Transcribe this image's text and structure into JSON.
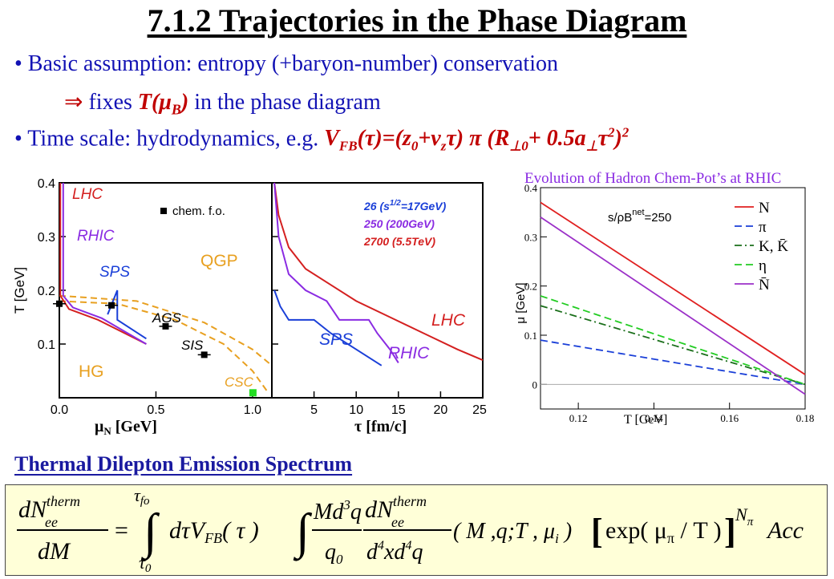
{
  "slide": {
    "title": "7.1.2 Trajectories in the Phase Diagram",
    "bullets": [
      {
        "text": "• Basic assumption:  entropy (+baryon-number) conservation"
      },
      {
        "arrow": "⇒",
        "text_a": " fixes ",
        "text_b": "T(μ",
        "sub": "B",
        "text_c": ")",
        "text_d": " in the phase diagram"
      },
      {
        "text_a": "• Time scale: hydrodynamics,   e.g. ",
        "formula": "V",
        "sub1": "FB",
        "f2": "(τ)=(z",
        "sub2": "0",
        "f3": "+v",
        "sub3": "z",
        "f4": "τ)  π (R",
        "sub4": "⊥0",
        "f5": "+ 0.5a",
        "sub5": "⊥",
        "f6": "τ",
        "sup6": "2",
        "f7": ")",
        "sup7": "2"
      }
    ],
    "subtitle": "Thermal Dilepton Emission Spectrum",
    "formula": {
      "lhs_num": "dN",
      "lhs_num_sup": "therm",
      "lhs_num_sub": "ee",
      "lhs_den": "dM",
      "eq": "=",
      "int_upper": "τ",
      "int_upper_sub": "fo",
      "int_lower": "τ",
      "int_lower_sub": "0",
      "int1_body": "dτV",
      "int1_sub": "FB",
      "int1_arg": "( τ )",
      "int2_num": "Md",
      "int2_num_sup": "3",
      "int2_num_q": "q",
      "int2_den": "q",
      "int2_den_sub": "0",
      "rate_num": "dN",
      "rate_num_sup": "therm",
      "rate_num_sub": "ee",
      "rate_den": "d",
      "rate_den_sup": "4",
      "rate_den_b": "xd",
      "rate_den_sup2": "4",
      "rate_den_c": "q",
      "args": "( M ,q;T , μ",
      "args_sub": "i",
      "args_end": " )",
      "exp_open": "[",
      "exp_text": "exp( μ",
      "exp_sub": "π",
      "exp_mid": " / T )",
      "exp_close": "]",
      "exp_pow": "N",
      "exp_pow_sub": "π",
      "acc": "Acc"
    }
  },
  "chart_data": [
    {
      "type": "line",
      "title": "",
      "xlabel": "μN [GeV]",
      "ylabel": "T [GeV]",
      "xlim": [
        0,
        1.1
      ],
      "ylim": [
        0,
        0.4
      ],
      "xticks": [
        "0.0",
        "0.5",
        "1.0"
      ],
      "yticks": [
        "0.1",
        "0.2",
        "0.3",
        "0.4"
      ],
      "annotations": [
        "LHC",
        "RHIC",
        "SPS",
        "QGP",
        "AGS",
        "SIS",
        "HG",
        "CSC"
      ],
      "legend": [
        {
          "marker": "■",
          "label": "chem. f.o."
        }
      ],
      "legend_placement": "top-right",
      "chem_fo_points": [
        {
          "x": 0.0,
          "y": 0.175
        },
        {
          "x": 0.27,
          "y": 0.172
        },
        {
          "x": 0.55,
          "y": 0.133
        },
        {
          "x": 0.75,
          "y": 0.08
        }
      ],
      "csc_point": {
        "x": 1.0,
        "y": 0.01
      },
      "series": [
        {
          "color": "#d42020",
          "points": [
            [
              0.005,
              0.4
            ],
            [
              0.005,
              0.19
            ],
            [
              0.05,
              0.165
            ],
            [
              0.2,
              0.145
            ],
            [
              0.45,
              0.1
            ]
          ]
        },
        {
          "color": "#8a2be2",
          "points": [
            [
              0.02,
              0.4
            ],
            [
              0.02,
              0.19
            ],
            [
              0.07,
              0.168
            ],
            [
              0.22,
              0.148
            ],
            [
              0.45,
              0.1
            ]
          ]
        },
        {
          "color": "#1a3fd8",
          "points": [
            [
              0.25,
              0.155
            ],
            [
              0.3,
              0.2
            ],
            [
              0.3,
              0.145
            ],
            [
              0.45,
              0.11
            ]
          ]
        }
      ],
      "dashed_boundaries": [
        {
          "color": "#e8a020",
          "points": [
            [
              0.0,
              0.18
            ],
            [
              0.3,
              0.175
            ],
            [
              0.6,
              0.145
            ],
            [
              0.85,
              0.1
            ],
            [
              1.0,
              0.05
            ],
            [
              1.08,
              0.01
            ]
          ]
        },
        {
          "color": "#e8a020",
          "points": [
            [
              0.0,
              0.19
            ],
            [
              0.4,
              0.18
            ],
            [
              0.75,
              0.14
            ],
            [
              1.0,
              0.09
            ],
            [
              1.1,
              0.06
            ]
          ]
        }
      ]
    },
    {
      "type": "line",
      "title": "",
      "xlabel": "τ [fm/c]",
      "ylabel": "",
      "xlim": [
        0,
        25
      ],
      "ylim": [
        0,
        0.4
      ],
      "xticks": [
        "5",
        "10",
        "15",
        "20",
        "25"
      ],
      "annotations": [
        "LHC",
        "SPS",
        "RHIC"
      ],
      "legend": [
        {
          "label": "26  (s",
          "sup": "1/2",
          "label2": "=17GeV)",
          "color": "#1a3fd8"
        },
        {
          "label": "250  (200GeV)",
          "color": "#8a2be2"
        },
        {
          "label": "2700  (5.5TeV)",
          "color": "#d42020"
        }
      ],
      "legend_placement": "top-right",
      "series": [
        {
          "name": "2700 (5.5TeV)",
          "color": "#d42020",
          "points": [
            [
              0.3,
              0.4
            ],
            [
              0.8,
              0.34
            ],
            [
              2,
              0.28
            ],
            [
              4,
              0.24
            ],
            [
              7,
              0.21
            ],
            [
              10,
              0.18
            ],
            [
              14,
              0.15
            ],
            [
              18,
              0.12
            ],
            [
              22,
              0.09
            ],
            [
              25,
              0.07
            ]
          ]
        },
        {
          "name": "250 (200GeV)",
          "color": "#8a2be2",
          "points": [
            [
              0.3,
              0.4
            ],
            [
              0.8,
              0.3
            ],
            [
              2,
              0.23
            ],
            [
              4,
              0.2
            ],
            [
              6.5,
              0.18
            ],
            [
              8,
              0.145
            ],
            [
              10,
              0.145
            ],
            [
              11.5,
              0.145
            ],
            [
              12.5,
              0.12
            ],
            [
              14,
              0.09
            ],
            [
              15,
              0.065
            ]
          ]
        },
        {
          "name": "26 (s1/2=17GeV)",
          "color": "#1a3fd8",
          "points": [
            [
              0.3,
              0.2
            ],
            [
              1,
              0.17
            ],
            [
              2,
              0.145
            ],
            [
              5,
              0.145
            ],
            [
              7,
              0.12
            ],
            [
              10,
              0.09
            ],
            [
              13,
              0.06
            ]
          ]
        }
      ]
    },
    {
      "type": "line",
      "title": "Evolution of Hadron Chem-Pot’s at RHIC",
      "xlabel": "T [GeV]",
      "ylabel": "μ [GeV]",
      "xlim": [
        0.11,
        0.18
      ],
      "ylim": [
        -0.05,
        0.4
      ],
      "xticks": [
        "0.12",
        "0.14",
        "0.16",
        "0.18"
      ],
      "yticks": [
        "0",
        "0.1",
        "0.2",
        "0.3",
        "0.4"
      ],
      "annotation": "s/ρB",
      "annotation_sup": "net",
      "annotation_val": "=250",
      "legend_placement": "top-right",
      "series": [
        {
          "name": "N",
          "color": "#e02020",
          "dash": "solid",
          "points": [
            [
              0.11,
              0.37
            ],
            [
              0.18,
              0.02
            ]
          ]
        },
        {
          "name": "π",
          "color": "#1a3fd8",
          "dash": "dashed",
          "points": [
            [
              0.11,
              0.09
            ],
            [
              0.18,
              0.0
            ]
          ]
        },
        {
          "name": "K, K̄",
          "color": "#1a6e1a",
          "dash": "dashdot",
          "points": [
            [
              0.11,
              0.16
            ],
            [
              0.18,
              0.0
            ]
          ]
        },
        {
          "name": "η",
          "color": "#22cc22",
          "dash": "dashed",
          "points": [
            [
              0.11,
              0.18
            ],
            [
              0.18,
              0.0
            ]
          ]
        },
        {
          "name": "N̄",
          "color": "#9b30c8",
          "dash": "solid",
          "points": [
            [
              0.11,
              0.34
            ],
            [
              0.18,
              -0.02
            ]
          ]
        }
      ]
    }
  ]
}
